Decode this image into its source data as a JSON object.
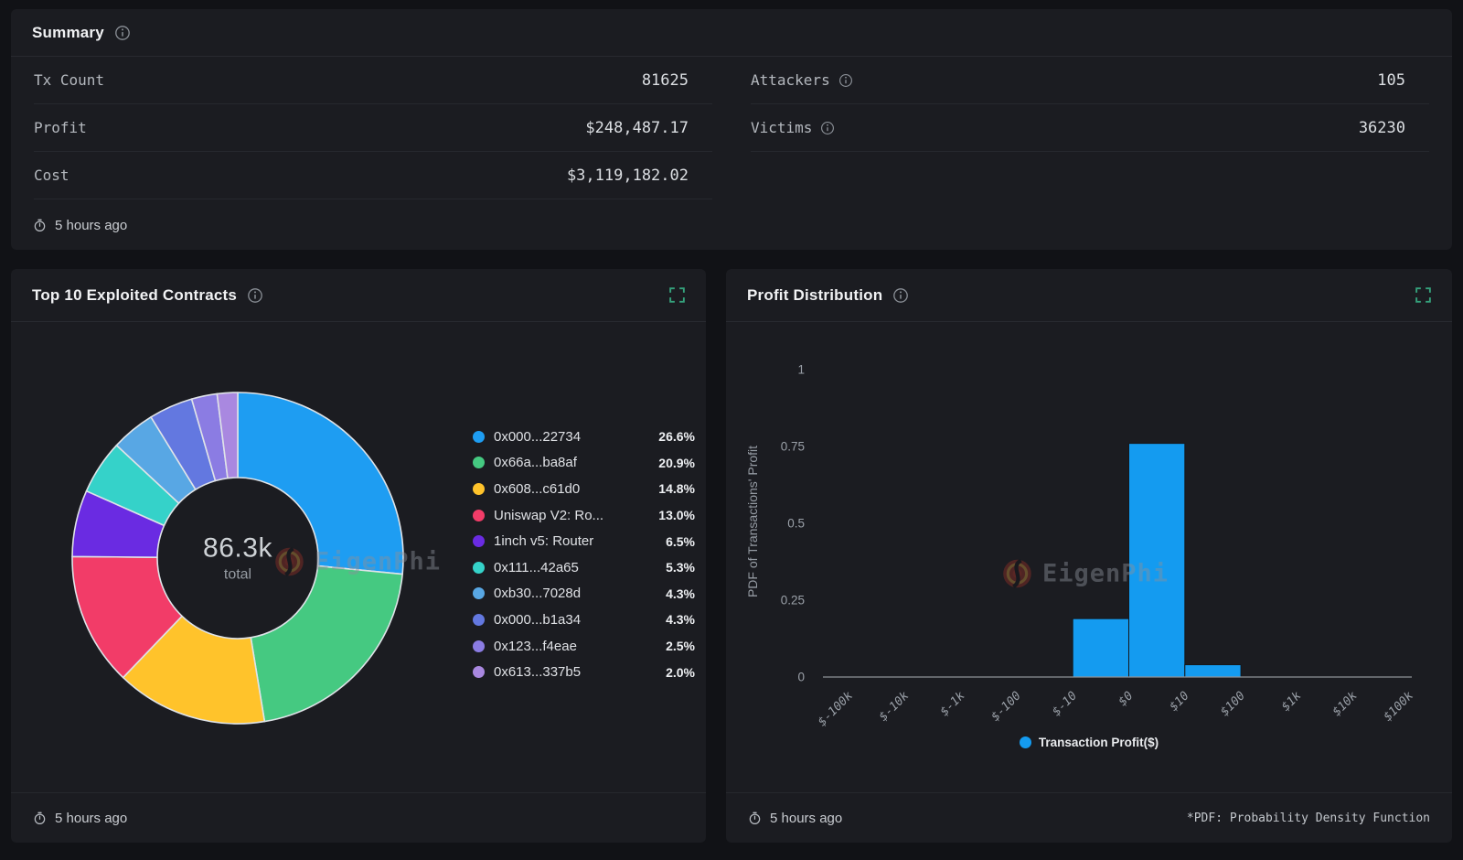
{
  "watermark_text": "EigenPhi",
  "summary": {
    "title": "Summary",
    "updated": "5 hours ago",
    "rows_left": [
      {
        "label": "Tx Count",
        "value": "81625"
      },
      {
        "label": "Profit",
        "value": "$248,487.17"
      },
      {
        "label": "Cost",
        "value": "$3,119,182.02"
      }
    ],
    "rows_right": [
      {
        "label": "Attackers",
        "value": "105"
      },
      {
        "label": "Victims",
        "value": "36230"
      }
    ]
  },
  "contracts_panel": {
    "title": "Top 10 Exploited Contracts",
    "updated": "5 hours ago",
    "center_value": "86.3k",
    "center_caption": "total"
  },
  "profit_panel": {
    "title": "Profit Distribution",
    "updated": "5 hours ago",
    "legend_label": "Transaction Profit($)",
    "footnote": "*PDF: Probability Density Function"
  },
  "chart_data": [
    {
      "type": "pie",
      "title": "Top 10 Exploited Contracts",
      "center_total": "86.3k total",
      "legend_position": "right",
      "items": [
        {
          "label": "0x000...22734",
          "pct": 26.6,
          "pct_label": "26.6%",
          "color": "#1e9df2"
        },
        {
          "label": "0x66a...ba8af",
          "pct": 20.9,
          "pct_label": "20.9%",
          "color": "#45c981"
        },
        {
          "label": "0x608...c61d0",
          "pct": 14.8,
          "pct_label": "14.8%",
          "color": "#ffc32b"
        },
        {
          "label": "Uniswap V2: Ro...",
          "pct": 13.0,
          "pct_label": "13.0%",
          "color": "#f23c68"
        },
        {
          "label": "1inch v5: Router",
          "pct": 6.5,
          "pct_label": "6.5%",
          "color": "#6a2be2"
        },
        {
          "label": "0x111...42a65",
          "pct": 5.3,
          "pct_label": "5.3%",
          "color": "#35d2c9"
        },
        {
          "label": "0xb30...7028d",
          "pct": 4.3,
          "pct_label": "4.3%",
          "color": "#58a7e4"
        },
        {
          "label": "0x000...b1a34",
          "pct": 4.3,
          "pct_label": "4.3%",
          "color": "#6378e0"
        },
        {
          "label": "0x123...f4eae",
          "pct": 2.5,
          "pct_label": "2.5%",
          "color": "#8b7ce3"
        },
        {
          "label": "0x613...337b5",
          "pct": 2.0,
          "pct_label": "2.0%",
          "color": "#a988e0"
        }
      ]
    },
    {
      "type": "bar",
      "title": "Profit Distribution",
      "ylabel": "PDF of Transactions' Profit",
      "yticks": [
        "0",
        "0.25",
        "0.5",
        "0.75",
        "1"
      ],
      "ylim": [
        0,
        1
      ],
      "grid": false,
      "legend_position": "bottom",
      "xticks": [
        "$-100k",
        "$-10k",
        "$-1k",
        "$-100",
        "$-10",
        "$0",
        "$10",
        "$100",
        "$1k",
        "$10k",
        "$100k"
      ],
      "bars": [
        {
          "from": "$-10",
          "to": "$0",
          "value": 0.19
        },
        {
          "from": "$0",
          "to": "$10",
          "value": 0.76
        },
        {
          "from": "$10",
          "to": "$100",
          "value": 0.04
        }
      ],
      "series": [
        {
          "name": "Transaction Profit($)",
          "color": "#149bf0"
        }
      ]
    }
  ],
  "colors": {
    "accent_green": "#35a27c",
    "bar_blue": "#149bf0",
    "panel_bg": "#1b1c21",
    "page_bg": "#111216"
  }
}
